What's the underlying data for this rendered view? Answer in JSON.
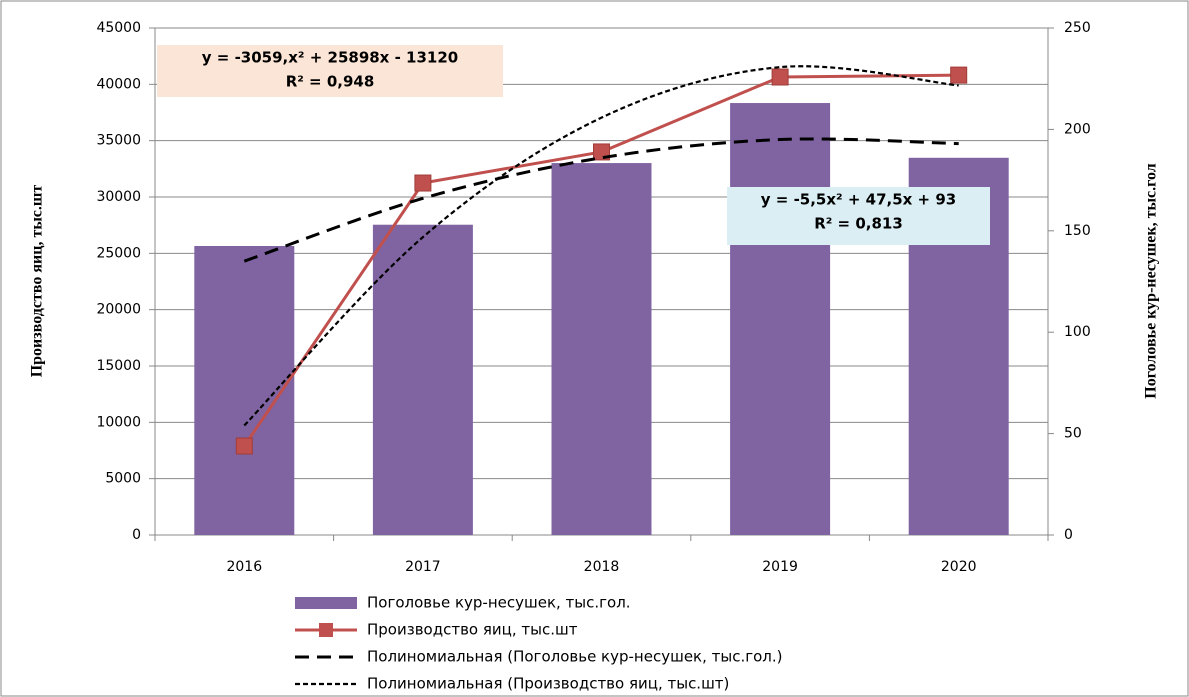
{
  "chart_data": {
    "type": "bar",
    "categories": [
      "2016",
      "2017",
      "2018",
      "2019",
      "2020"
    ],
    "y_label": "Производство яиц, тыс.шт",
    "y2_label": "Поголовье кур-несушек, тыс.гол",
    "ylim": [
      0,
      45000
    ],
    "yticks": [
      0,
      5000,
      10000,
      15000,
      20000,
      25000,
      30000,
      35000,
      40000,
      45000
    ],
    "y2lim": [
      0,
      250
    ],
    "y2ticks": [
      0,
      50,
      100,
      150,
      200,
      250
    ],
    "grid": true,
    "legend": "bottom",
    "series": [
      {
        "name": "Поголовье кур-несушек, тыс.гол.",
        "type": "bar",
        "axis": "y2",
        "color": "#8064a2",
        "values": [
          142.5,
          153,
          183.4,
          213,
          186
        ]
      },
      {
        "name": "Производство яиц, тыс.шт",
        "type": "line",
        "axis": "y",
        "color": "#c0504d",
        "marker": "square",
        "values": [
          7900,
          31240,
          34000,
          40650,
          40820
        ]
      },
      {
        "name": "Полиномиальная (Поголовье кур-несушек, тыс.гол.)",
        "type": "trend",
        "axis": "y2",
        "color": "#000000",
        "dash": "14 8",
        "width": 3,
        "values": [
          135,
          166,
          186,
          195,
          193
        ]
      },
      {
        "name": "Полиномиальная (Производство яиц, тыс.шт)",
        "type": "trend",
        "axis": "y",
        "color": "#000000",
        "dash": "5 3",
        "width": 2.2,
        "values": [
          9719,
          26440,
          37043,
          41528,
          39895
        ]
      }
    ],
    "annotations": [
      {
        "lines": [
          "y = -3059,x² + 25898x - 13120",
          "R² = 0,948"
        ],
        "background": "#fbe5d6"
      },
      {
        "lines": [
          "y = -5,5x² + 47,5x + 93",
          "R² = 0,813"
        ],
        "background": "#dbeef4"
      }
    ]
  }
}
